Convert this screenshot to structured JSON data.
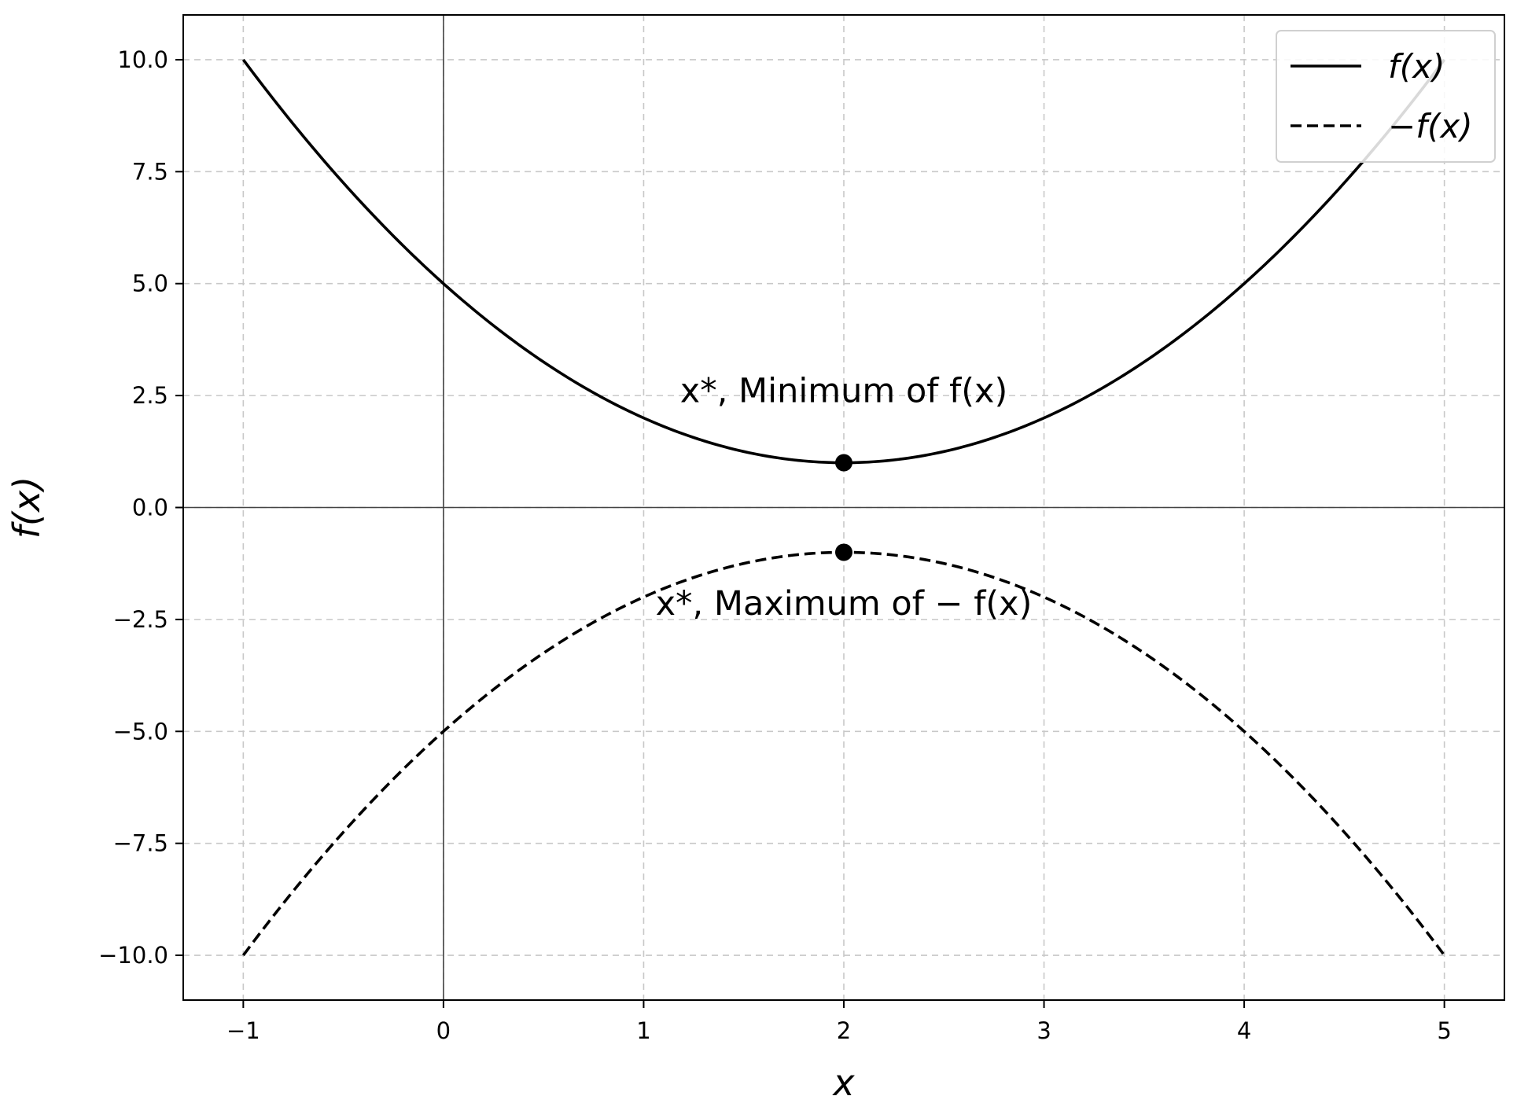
{
  "chart_data": {
    "type": "line",
    "title": "",
    "xlabel": "x",
    "ylabel": "f(x)",
    "xlim": [
      -1.3,
      5.3
    ],
    "ylim": [
      -11.0,
      11.0
    ],
    "xticks": [
      -1,
      0,
      1,
      2,
      3,
      4,
      5
    ],
    "xtick_labels": [
      "−1",
      "0",
      "1",
      "2",
      "3",
      "4",
      "5"
    ],
    "yticks": [
      10.0,
      7.5,
      5.0,
      2.5,
      0.0,
      -2.5,
      -5.0,
      -7.5,
      -10.0
    ],
    "ytick_labels": [
      "10.0",
      "7.5",
      "5.0",
      "2.5",
      "0.0",
      "−2.5",
      "−5.0",
      "−7.5",
      "−10.0"
    ],
    "grid": true,
    "legend_position": "top-right",
    "series": [
      {
        "name": "f(x)",
        "style": "solid",
        "color": "#000000",
        "x": [
          -1.0,
          -0.5,
          0.0,
          0.5,
          1.0,
          1.5,
          2.0,
          2.5,
          3.0,
          3.5,
          4.0,
          4.5,
          5.0
        ],
        "y": [
          10.0,
          7.25,
          5.0,
          3.25,
          2.0,
          1.25,
          1.0,
          1.25,
          2.0,
          3.25,
          5.0,
          7.25,
          10.0
        ]
      },
      {
        "name": "−f(x)",
        "style": "dashed",
        "color": "#000000",
        "x": [
          -1.0,
          -0.5,
          0.0,
          0.5,
          1.0,
          1.5,
          2.0,
          2.5,
          3.0,
          3.5,
          4.0,
          4.5,
          5.0
        ],
        "y": [
          -10.0,
          -7.25,
          -5.0,
          -3.25,
          -2.0,
          -1.25,
          -1.0,
          -1.25,
          -2.0,
          -3.25,
          -5.0,
          -7.25,
          -10.0
        ]
      }
    ],
    "points": [
      {
        "x": 2.0,
        "y": 1.0
      },
      {
        "x": 2.0,
        "y": -1.0
      }
    ],
    "annotations": [
      {
        "text": "x*, Minimum of f(x)",
        "x": 2.0,
        "y": 2.35
      },
      {
        "text": "x*, Maximum of − f(x)",
        "x": 2.0,
        "y": -2.4
      }
    ]
  }
}
